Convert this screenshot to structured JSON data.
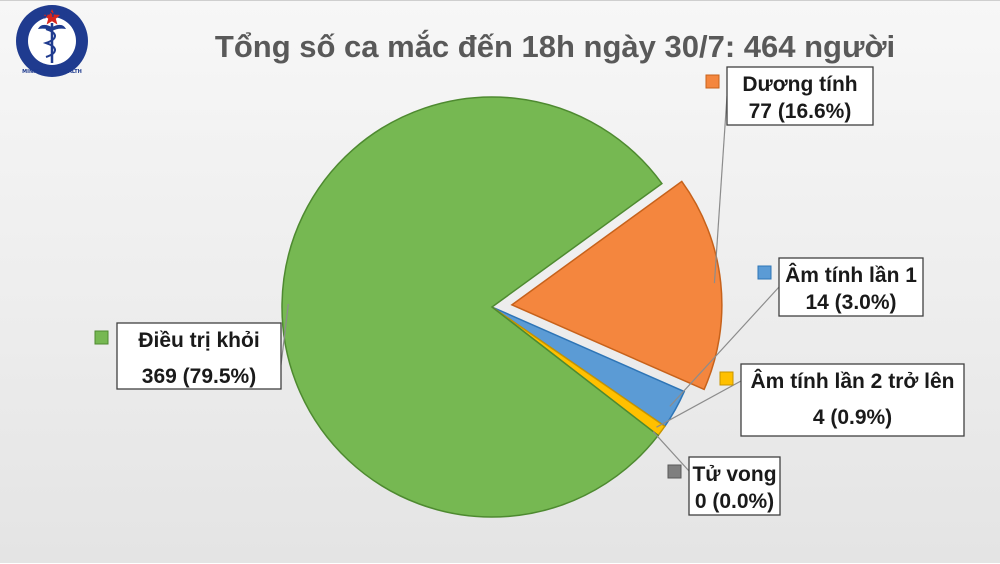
{
  "logo": {
    "top_text": "BỘ Y TẾ",
    "bottom_text": "MINISTRY OF HEALTH",
    "colors": {
      "ring": "#1f3b8f",
      "fill": "#ffffff",
      "star": "#d7261e"
    }
  },
  "chart_data": {
    "type": "pie",
    "title": "Tổng số ca mắc đến 18h ngày 30/7: 464 người",
    "total": 464,
    "slices": [
      {
        "name": "Dương tính",
        "value": 77,
        "label": "77 (16.6%)",
        "color": "#f4863e",
        "edge": "#c7621b",
        "exploded": true
      },
      {
        "name": "Âm tính lần 1",
        "value": 14,
        "label": "14 (3.0%)",
        "color": "#5b9bd5",
        "edge": "#2e75b6",
        "exploded": false
      },
      {
        "name": "Âm tính lần 2 trở lên",
        "value": 4,
        "label": "4 (0.9%)",
        "color": "#ffc000",
        "edge": "#c79400",
        "exploded": false
      },
      {
        "name": "Tử vong",
        "value": 0,
        "label": "0 (0.0%)",
        "color": "#7f7f7f",
        "edge": "#595959",
        "exploded": false
      },
      {
        "name": "Điều trị khỏi",
        "value": 369,
        "label": "369 (79.5%)",
        "color": "#76b852",
        "edge": "#4e8a30",
        "exploded": false
      }
    ]
  }
}
